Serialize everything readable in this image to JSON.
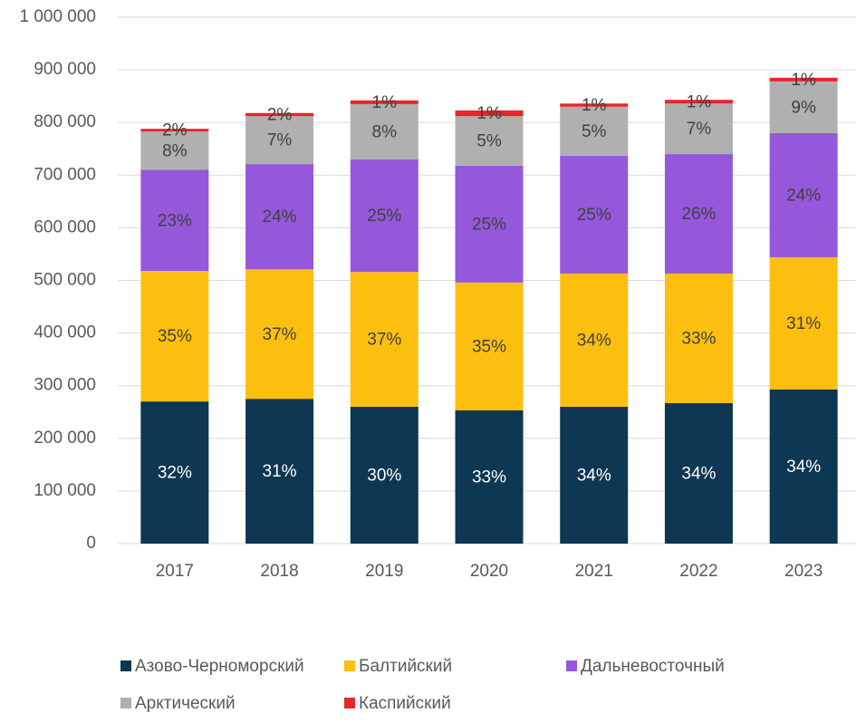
{
  "chart_data": {
    "type": "stacked-bar",
    "categories": [
      "2017",
      "2018",
      "2019",
      "2020",
      "2021",
      "2022",
      "2023"
    ],
    "series": [
      {
        "name": "Азово-Черноморский",
        "color": "#0d3752",
        "label_color": "#ffffff",
        "values": [
          270000,
          275000,
          260000,
          253000,
          260000,
          267000,
          293000
        ],
        "labels": [
          "32%",
          "31%",
          "30%",
          "33%",
          "34%",
          "34%",
          "34%"
        ]
      },
      {
        "name": "Балтийский",
        "color": "#fcbf0f",
        "label_color": "#404040",
        "values": [
          248000,
          246000,
          256000,
          243000,
          253000,
          246000,
          251000
        ],
        "labels": [
          "35%",
          "37%",
          "37%",
          "35%",
          "34%",
          "33%",
          "31%"
        ]
      },
      {
        "name": "Дальневосточный",
        "color": "#9558db",
        "label_color": "#404040",
        "values": [
          192000,
          200000,
          214000,
          222000,
          224000,
          227000,
          236000
        ],
        "labels": [
          "23%",
          "24%",
          "25%",
          "25%",
          "25%",
          "26%",
          "24%"
        ]
      },
      {
        "name": "Арктический",
        "color": "#b0b0b0",
        "label_color": "#404040",
        "values": [
          73000,
          91000,
          105000,
          94000,
          93000,
          96000,
          98000
        ],
        "labels": [
          "8%",
          "7%",
          "8%",
          "5%",
          "5%",
          "7%",
          "9%"
        ]
      },
      {
        "name": "Каспийский",
        "color": "#e8262b",
        "label_color": "#404040",
        "values": [
          5000,
          6000,
          7000,
          11000,
          6000,
          7000,
          7000
        ],
        "labels": [
          "2%",
          "2%",
          "1%",
          "1%",
          "1%",
          "1%",
          "1%"
        ]
      }
    ],
    "ylim": [
      0,
      1000000
    ],
    "yticks": [
      0,
      {
        "value": 100000,
        "label": "100 000"
      },
      {
        "value": 200000,
        "label": "200 000"
      },
      {
        "value": 300000,
        "label": "300 000"
      },
      {
        "value": 400000,
        "label": "400 000"
      },
      {
        "value": 500000,
        "label": "500 000"
      },
      {
        "value": 600000,
        "label": "600 000"
      },
      {
        "value": 700000,
        "label": "700 000"
      },
      {
        "value": 800000,
        "label": "800 000"
      },
      {
        "value": 900000,
        "label": "900 000"
      },
      {
        "value": 1000000,
        "label": "1 000 000"
      }
    ],
    "grid": true
  }
}
